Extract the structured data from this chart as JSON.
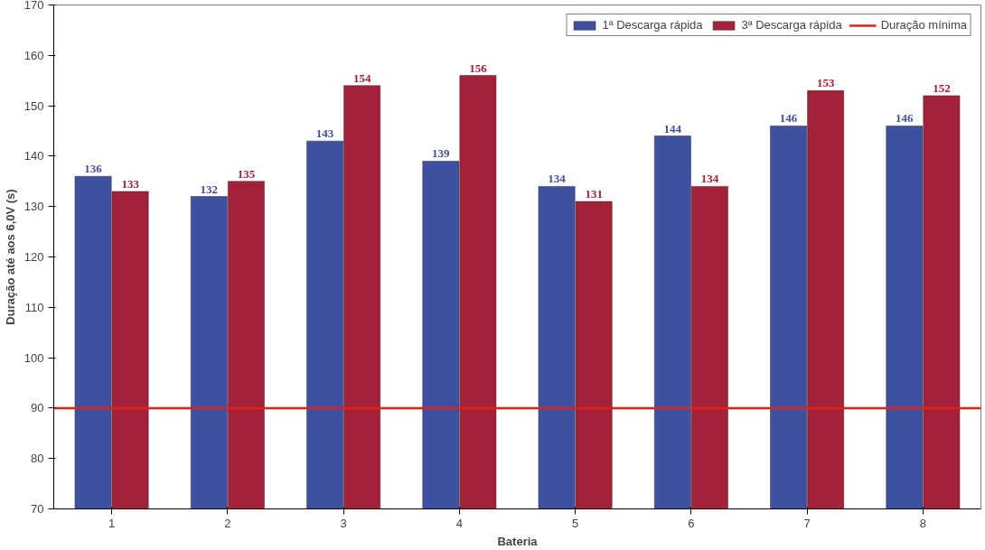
{
  "chart_data": {
    "type": "bar",
    "xlabel": "Bateria",
    "ylabel": "Duração até aos 6,0V (s)",
    "categories": [
      "1",
      "2",
      "3",
      "4",
      "5",
      "6",
      "7",
      "8"
    ],
    "series": [
      {
        "name": "1ª Descarga rápida",
        "color": "#4050a0",
        "values": [
          136,
          132,
          143,
          139,
          134,
          144,
          146,
          146
        ]
      },
      {
        "name": "3ª Descarga rápida",
        "color": "#a4213a",
        "values": [
          133,
          135,
          154,
          156,
          131,
          134,
          153,
          152
        ]
      }
    ],
    "ref_lines": [
      {
        "axis": "y",
        "value": 90,
        "label": "Duração mínima",
        "color": "#e0201a",
        "line_style": "solid"
      }
    ],
    "ylim": [
      70,
      170
    ],
    "yticks": [
      70,
      80,
      90,
      100,
      110,
      120,
      130,
      140,
      150,
      160,
      170
    ],
    "data_labels": true,
    "legend": "top right",
    "grid": false
  }
}
